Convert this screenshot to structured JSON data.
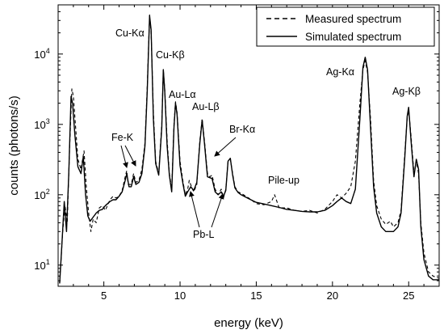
{
  "chart_data": {
    "type": "line",
    "xlabel": "energy (keV)",
    "ylabel": "counts (photons/s)",
    "xlim": [
      2,
      27
    ],
    "ylim": [
      5,
      50000
    ],
    "y_scale": "log",
    "grid": false,
    "legend_position": "top-right",
    "x_ticks": [
      5,
      10,
      15,
      20,
      25
    ],
    "y_ticks": [
      {
        "value": 10,
        "base": "10",
        "exp": "1"
      },
      {
        "value": 100,
        "base": "10",
        "exp": "2"
      },
      {
        "value": 1000,
        "base": "10",
        "exp": "3"
      },
      {
        "value": 10000,
        "base": "10",
        "exp": "4"
      }
    ],
    "series": [
      {
        "name": "Measured spectrum",
        "style": "dashed",
        "points": [
          [
            2.1,
            5.5
          ],
          [
            2.3,
            30
          ],
          [
            2.45,
            70
          ],
          [
            2.6,
            40
          ],
          [
            2.75,
            450
          ],
          [
            2.9,
            3200
          ],
          [
            3.0,
            2500
          ],
          [
            3.15,
            900
          ],
          [
            3.3,
            320
          ],
          [
            3.5,
            230
          ],
          [
            3.7,
            420
          ],
          [
            3.85,
            130
          ],
          [
            4.0,
            55
          ],
          [
            4.15,
            30
          ],
          [
            4.3,
            45
          ],
          [
            4.5,
            40
          ],
          [
            4.7,
            65
          ],
          [
            4.9,
            70
          ],
          [
            5.1,
            60
          ],
          [
            5.4,
            85
          ],
          [
            5.6,
            95
          ],
          [
            5.8,
            90
          ],
          [
            6.0,
            95
          ],
          [
            6.2,
            115
          ],
          [
            6.4,
            180
          ],
          [
            6.5,
            220
          ],
          [
            6.6,
            140
          ],
          [
            6.8,
            140
          ],
          [
            6.95,
            200
          ],
          [
            7.1,
            150
          ],
          [
            7.3,
            160
          ],
          [
            7.5,
            230
          ],
          [
            7.7,
            550
          ],
          [
            7.85,
            3500
          ],
          [
            8.0,
            36000
          ],
          [
            8.1,
            20000
          ],
          [
            8.25,
            1500
          ],
          [
            8.4,
            300
          ],
          [
            8.6,
            200
          ],
          [
            8.8,
            1000
          ],
          [
            8.9,
            6000
          ],
          [
            9.0,
            3000
          ],
          [
            9.15,
            600
          ],
          [
            9.3,
            200
          ],
          [
            9.45,
            120
          ],
          [
            9.6,
            1000
          ],
          [
            9.7,
            2100
          ],
          [
            9.8,
            1500
          ],
          [
            10.0,
            300
          ],
          [
            10.2,
            150
          ],
          [
            10.35,
            100
          ],
          [
            10.5,
            120
          ],
          [
            10.6,
            160
          ],
          [
            10.75,
            130
          ],
          [
            10.9,
            110
          ],
          [
            11.1,
            140
          ],
          [
            11.3,
            600
          ],
          [
            11.45,
            1200
          ],
          [
            11.6,
            600
          ],
          [
            11.8,
            200
          ],
          [
            11.95,
            180
          ],
          [
            12.1,
            190
          ],
          [
            12.3,
            120
          ],
          [
            12.5,
            100
          ],
          [
            12.7,
            120
          ],
          [
            12.85,
            90
          ],
          [
            13.0,
            120
          ],
          [
            13.15,
            300
          ],
          [
            13.3,
            320
          ],
          [
            13.45,
            200
          ],
          [
            13.6,
            130
          ],
          [
            13.8,
            110
          ],
          [
            14.0,
            105
          ],
          [
            14.5,
            90
          ],
          [
            15.0,
            75
          ],
          [
            15.5,
            72
          ],
          [
            16.0,
            80
          ],
          [
            16.2,
            100
          ],
          [
            16.5,
            65
          ],
          [
            17.0,
            65
          ],
          [
            17.5,
            60
          ],
          [
            18.0,
            58
          ],
          [
            18.5,
            60
          ],
          [
            19.0,
            55
          ],
          [
            19.5,
            62
          ],
          [
            20.0,
            80
          ],
          [
            20.3,
            100
          ],
          [
            20.6,
            90
          ],
          [
            20.9,
            105
          ],
          [
            21.2,
            130
          ],
          [
            21.5,
            300
          ],
          [
            21.8,
            2000
          ],
          [
            22.0,
            6000
          ],
          [
            22.15,
            8000
          ],
          [
            22.3,
            5500
          ],
          [
            22.5,
            1200
          ],
          [
            22.7,
            160
          ],
          [
            22.9,
            70
          ],
          [
            23.2,
            45
          ],
          [
            23.5,
            38
          ],
          [
            23.8,
            42
          ],
          [
            24.0,
            35
          ],
          [
            24.3,
            40
          ],
          [
            24.5,
            60
          ],
          [
            24.75,
            400
          ],
          [
            24.9,
            1200
          ],
          [
            25.0,
            1600
          ],
          [
            25.15,
            700
          ],
          [
            25.35,
            200
          ],
          [
            25.5,
            300
          ],
          [
            25.65,
            200
          ],
          [
            25.8,
            40
          ],
          [
            26.0,
            15
          ],
          [
            26.3,
            8
          ],
          [
            26.6,
            7
          ],
          [
            27.0,
            6.5
          ]
        ]
      },
      {
        "name": "Simulated spectrum",
        "style": "solid",
        "points": [
          [
            2.1,
            5.5
          ],
          [
            2.25,
            20
          ],
          [
            2.4,
            80
          ],
          [
            2.55,
            30
          ],
          [
            2.7,
            200
          ],
          [
            2.85,
            2500
          ],
          [
            2.95,
            2000
          ],
          [
            3.1,
            700
          ],
          [
            3.3,
            250
          ],
          [
            3.5,
            200
          ],
          [
            3.65,
            350
          ],
          [
            3.8,
            100
          ],
          [
            3.95,
            50
          ],
          [
            4.1,
            42
          ],
          [
            4.3,
            48
          ],
          [
            4.5,
            55
          ],
          [
            4.7,
            60
          ],
          [
            4.9,
            62
          ],
          [
            5.1,
            70
          ],
          [
            5.4,
            80
          ],
          [
            5.6,
            85
          ],
          [
            5.8,
            85
          ],
          [
            6.0,
            95
          ],
          [
            6.2,
            110
          ],
          [
            6.4,
            160
          ],
          [
            6.5,
            200
          ],
          [
            6.65,
            130
          ],
          [
            6.8,
            130
          ],
          [
            6.95,
            180
          ],
          [
            7.1,
            140
          ],
          [
            7.3,
            150
          ],
          [
            7.5,
            200
          ],
          [
            7.7,
            500
          ],
          [
            7.85,
            3000
          ],
          [
            8.0,
            35000
          ],
          [
            8.1,
            22000
          ],
          [
            8.25,
            1200
          ],
          [
            8.4,
            280
          ],
          [
            8.6,
            190
          ],
          [
            8.8,
            900
          ],
          [
            8.9,
            6000
          ],
          [
            9.0,
            2800
          ],
          [
            9.15,
            500
          ],
          [
            9.3,
            190
          ],
          [
            9.45,
            110
          ],
          [
            9.6,
            900
          ],
          [
            9.7,
            2000
          ],
          [
            9.8,
            1400
          ],
          [
            10.0,
            260
          ],
          [
            10.2,
            140
          ],
          [
            10.35,
            95
          ],
          [
            10.5,
            110
          ],
          [
            10.7,
            130
          ],
          [
            10.9,
            115
          ],
          [
            11.1,
            150
          ],
          [
            11.3,
            550
          ],
          [
            11.45,
            1150
          ],
          [
            11.6,
            550
          ],
          [
            11.8,
            180
          ],
          [
            11.95,
            175
          ],
          [
            12.1,
            170
          ],
          [
            12.3,
            110
          ],
          [
            12.5,
            100
          ],
          [
            12.7,
            110
          ],
          [
            12.85,
            95
          ],
          [
            13.0,
            115
          ],
          [
            13.15,
            300
          ],
          [
            13.3,
            330
          ],
          [
            13.45,
            190
          ],
          [
            13.6,
            125
          ],
          [
            13.8,
            108
          ],
          [
            14.0,
            100
          ],
          [
            14.5,
            88
          ],
          [
            15.0,
            78
          ],
          [
            15.5,
            74
          ],
          [
            16.0,
            70
          ],
          [
            16.5,
            66
          ],
          [
            17.0,
            62
          ],
          [
            17.5,
            60
          ],
          [
            18.0,
            58
          ],
          [
            18.5,
            57
          ],
          [
            19.0,
            57
          ],
          [
            19.5,
            60
          ],
          [
            20.0,
            70
          ],
          [
            20.3,
            80
          ],
          [
            20.6,
            90
          ],
          [
            20.9,
            80
          ],
          [
            21.2,
            75
          ],
          [
            21.5,
            120
          ],
          [
            21.8,
            1200
          ],
          [
            22.0,
            6500
          ],
          [
            22.15,
            9000
          ],
          [
            22.3,
            6000
          ],
          [
            22.5,
            900
          ],
          [
            22.7,
            130
          ],
          [
            22.9,
            55
          ],
          [
            23.2,
            35
          ],
          [
            23.5,
            30
          ],
          [
            23.8,
            30
          ],
          [
            24.0,
            30
          ],
          [
            24.3,
            35
          ],
          [
            24.5,
            55
          ],
          [
            24.75,
            350
          ],
          [
            24.9,
            1300
          ],
          [
            25.0,
            1750
          ],
          [
            25.15,
            600
          ],
          [
            25.35,
            180
          ],
          [
            25.5,
            320
          ],
          [
            25.65,
            230
          ],
          [
            25.8,
            35
          ],
          [
            26.0,
            12
          ],
          [
            26.3,
            7
          ],
          [
            26.6,
            6.2
          ],
          [
            27.0,
            6.2
          ]
        ]
      }
    ],
    "annotations": [
      {
        "id": "cu-ka",
        "text": "Cu-Kα"
      },
      {
        "id": "cu-kb",
        "text": "Cu-Kβ"
      },
      {
        "id": "au-la",
        "text": "Au-Lα"
      },
      {
        "id": "au-lb",
        "text": "Au-Lβ"
      },
      {
        "id": "br-ka",
        "text": "Br-Kα"
      },
      {
        "id": "fe-k",
        "text": "Fe-K"
      },
      {
        "id": "pile-up",
        "text": "Pile-up"
      },
      {
        "id": "pb-l",
        "text": "Pb-L"
      },
      {
        "id": "ag-ka",
        "text": "Ag-Kα"
      },
      {
        "id": "ag-kb",
        "text": "Ag-Kβ"
      }
    ]
  }
}
